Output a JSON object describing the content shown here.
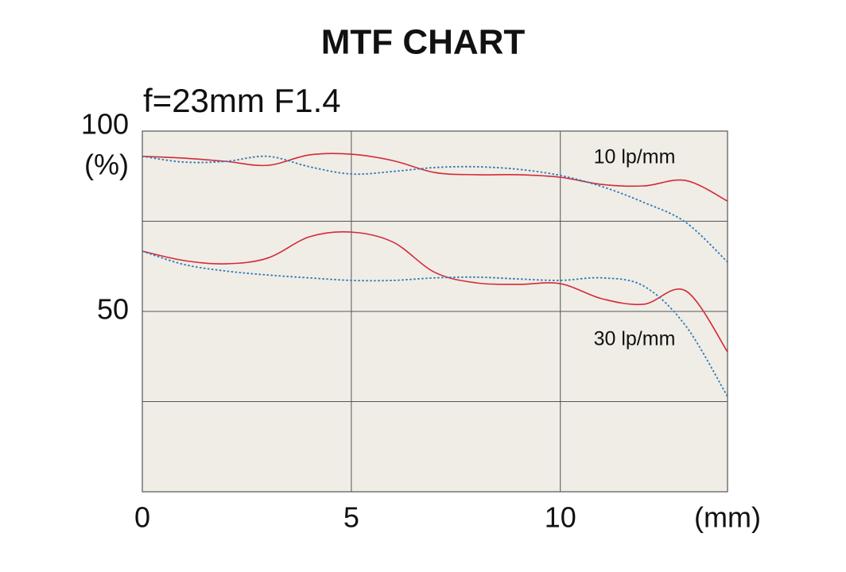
{
  "chart_data": {
    "type": "line",
    "title": "MTF CHART",
    "subtitle": "f=23mm F1.4",
    "y_label": "(%)",
    "x_label": "(mm)",
    "x": [
      0,
      1,
      2,
      3,
      4,
      5,
      6,
      7,
      8,
      9,
      10,
      11,
      12,
      13,
      14
    ],
    "xlim": [
      0,
      14
    ],
    "xticks": [
      0,
      5,
      10
    ],
    "ylim": [
      0,
      100
    ],
    "yticks": [
      50,
      100
    ],
    "ygrid": [
      25,
      50,
      75
    ],
    "xgrid": [
      5,
      10
    ],
    "plot_background": "#efede6",
    "series": [
      {
        "color": "#d42a3a",
        "dashed": false,
        "values": [
          93,
          92.5,
          91.6,
          90.5,
          93.4,
          93.6,
          91.8,
          88.5,
          87.9,
          87.9,
          87.2,
          85.2,
          84.8,
          86.3,
          80.6
        ]
      },
      {
        "color": "#2f78b8",
        "dashed": true,
        "values": [
          93,
          91.4,
          91.6,
          93,
          90.1,
          88.1,
          88.8,
          89.9,
          90.1,
          89.4,
          87.7,
          84.6,
          80.2,
          74.7,
          63.7
        ]
      },
      {
        "color": "#d42a3a",
        "dashed": false,
        "values": [
          66.7,
          64.1,
          63.2,
          64.8,
          70.7,
          72,
          69.2,
          60.8,
          57.9,
          57.5,
          57.7,
          53.5,
          52,
          55.7,
          38.8
        ]
      },
      {
        "color": "#2f78b8",
        "dashed": true,
        "values": [
          66.7,
          63,
          61.2,
          60.1,
          59.3,
          58.6,
          58.6,
          59.3,
          59.5,
          59,
          58.6,
          59.3,
          57,
          46,
          26.4
        ]
      }
    ],
    "annotations": [
      "10 lp/mm",
      "30 lp/mm"
    ]
  }
}
